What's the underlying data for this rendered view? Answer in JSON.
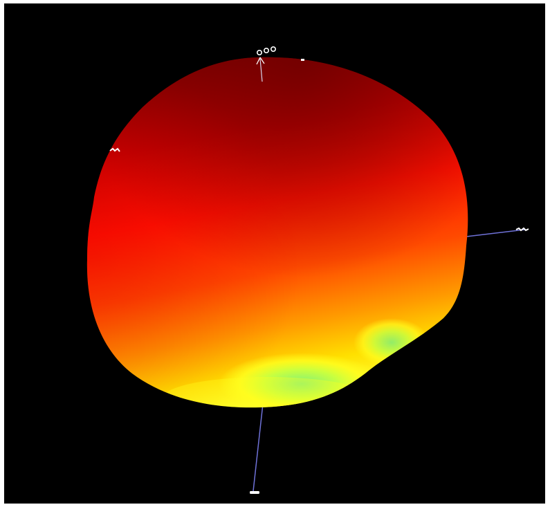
{
  "viewer": {
    "background_color": "#000000",
    "surface_gradient_colors": {
      "highlight": "#7ff07a",
      "yellow": "#ffff10",
      "orange": "#ff8a00",
      "red": "#ff1000",
      "dark_red": "#8a0000"
    },
    "axis_line_color": "#6f72d8",
    "axis_labels_color": "#ffffff",
    "axis_tags": {
      "top": "",
      "left": "",
      "right": "",
      "bottom": ""
    }
  }
}
